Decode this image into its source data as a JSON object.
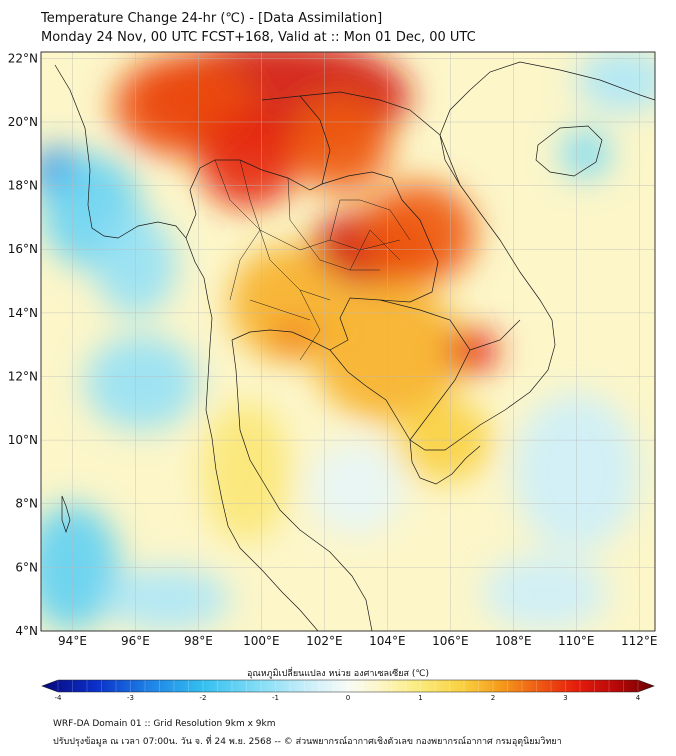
{
  "title": {
    "line1": "Temperature Change 24-hr (℃) - [Data Assimilation]",
    "line2": "Monday 24 Nov, 00 UTC FCST+168, Valid at :: Mon 01 Dec, 00 UTC"
  },
  "map": {
    "lon_range": [
      93,
      112.5
    ],
    "lat_range": [
      4,
      22.2
    ],
    "lon_ticks": [
      {
        "v": 94,
        "label": "94°E"
      },
      {
        "v": 96,
        "label": "96°E"
      },
      {
        "v": 98,
        "label": "98°E"
      },
      {
        "v": 100,
        "label": "100°E"
      },
      {
        "v": 102,
        "label": "102°E"
      },
      {
        "v": 104,
        "label": "104°E"
      },
      {
        "v": 106,
        "label": "106°E"
      },
      {
        "v": 108,
        "label": "108°E"
      },
      {
        "v": 110,
        "label": "110°E"
      },
      {
        "v": 112,
        "label": "112°E"
      }
    ],
    "lat_ticks": [
      {
        "v": 22,
        "label": "22°N"
      },
      {
        "v": 20,
        "label": "20°N"
      },
      {
        "v": 18,
        "label": "18°N"
      },
      {
        "v": 16,
        "label": "16°N"
      },
      {
        "v": 14,
        "label": "14°N"
      },
      {
        "v": 12,
        "label": "12°N"
      },
      {
        "v": 10,
        "label": "10°N"
      },
      {
        "v": 8,
        "label": "8°N"
      },
      {
        "v": 6,
        "label": "6°N"
      },
      {
        "v": 4,
        "label": "4°N"
      }
    ]
  },
  "field": {
    "background_value": 0.4,
    "anomalies": [
      {
        "name": "north-warm-core",
        "lon": 100.5,
        "lat": 20.8,
        "value": 3.2,
        "rx": 4.2,
        "ry": 1.8
      },
      {
        "name": "northwest-warm",
        "lon": 97.5,
        "lat": 20.5,
        "value": 2.6,
        "rx": 2.2,
        "ry": 1.6
      },
      {
        "name": "north-thailand-warm",
        "lon": 99.6,
        "lat": 18.8,
        "value": 2.9,
        "rx": 1.6,
        "ry": 1.5
      },
      {
        "name": "laos-warm",
        "lon": 102.5,
        "lat": 19.3,
        "value": 2.5,
        "rx": 1.6,
        "ry": 1.5
      },
      {
        "name": "isan-warm-core",
        "lon": 103.5,
        "lat": 16.0,
        "value": 3.2,
        "rx": 2.0,
        "ry": 1.2
      },
      {
        "name": "central-laos-warm",
        "lon": 105.0,
        "lat": 16.5,
        "value": 2.5,
        "rx": 1.8,
        "ry": 1.6
      },
      {
        "name": "central-thailand",
        "lon": 100.8,
        "lat": 14.3,
        "value": 1.8,
        "rx": 1.8,
        "ry": 1.8
      },
      {
        "name": "bangkok-warm",
        "lon": 101.0,
        "lat": 13.2,
        "value": 2.3,
        "rx": 0.7,
        "ry": 0.5
      },
      {
        "name": "cambodia-warm",
        "lon": 104.0,
        "lat": 12.8,
        "value": 1.8,
        "rx": 2.4,
        "ry": 2.2
      },
      {
        "name": "vietnam-warm-core",
        "lon": 106.7,
        "lat": 12.8,
        "value": 3.0,
        "rx": 0.8,
        "ry": 0.7
      },
      {
        "name": "mekong-warm",
        "lon": 105.8,
        "lat": 10.0,
        "value": 1.5,
        "rx": 1.5,
        "ry": 1.3
      },
      {
        "name": "peninsula-warm",
        "lon": 99.5,
        "lat": 9.0,
        "value": 1.0,
        "rx": 1.4,
        "ry": 2.2
      },
      {
        "name": "bay-of-bengal-cold",
        "lon": 93.6,
        "lat": 18.4,
        "value": -2.6,
        "rx": 0.9,
        "ry": 0.8
      },
      {
        "name": "andaman-cool",
        "lon": 94.6,
        "lat": 17.2,
        "value": -1.4,
        "rx": 1.6,
        "ry": 1.8
      },
      {
        "name": "myanmar-coast-cool",
        "lon": 96.0,
        "lat": 15.5,
        "value": -1.0,
        "rx": 1.3,
        "ry": 1.6
      },
      {
        "name": "andaman-sea-cool",
        "lon": 96.2,
        "lat": 11.8,
        "value": -1.0,
        "rx": 1.8,
        "ry": 1.5
      },
      {
        "name": "southwest-cool",
        "lon": 94.0,
        "lat": 6.0,
        "value": -1.5,
        "rx": 1.5,
        "ry": 2.0
      },
      {
        "name": "south-cool",
        "lon": 97.0,
        "lat": 5.0,
        "value": -0.8,
        "rx": 2.0,
        "ry": 1.0
      },
      {
        "name": "hainan-cool",
        "lon": 110.3,
        "lat": 19.0,
        "value": -1.2,
        "rx": 0.8,
        "ry": 0.8
      },
      {
        "name": "northeast-cool",
        "lon": 111.5,
        "lat": 21.3,
        "value": -0.8,
        "rx": 1.5,
        "ry": 1.0
      },
      {
        "name": "south-china-sea-cool",
        "lon": 110.0,
        "lat": 9.0,
        "value": -0.5,
        "rx": 2.0,
        "ry": 2.5
      },
      {
        "name": "south-east-cool",
        "lon": 109.0,
        "lat": 5.2,
        "value": -0.5,
        "rx": 2.0,
        "ry": 1.2
      },
      {
        "name": "gulf-of-thailand-cool",
        "lon": 103.0,
        "lat": 8.5,
        "value": -0.2,
        "rx": 1.5,
        "ry": 1.5
      }
    ]
  },
  "colorbar": {
    "label": "อุณหภูมิเปลี่ยนแปลง หน่วย องศาเซลเซียส (℃)",
    "min": -4,
    "max": 4,
    "stops": [
      {
        "v": -4.0,
        "color": "#08087a"
      },
      {
        "v": -3.3,
        "color": "#0a2fc8"
      },
      {
        "v": -2.6,
        "color": "#1e82e6"
      },
      {
        "v": -1.9,
        "color": "#34bff0"
      },
      {
        "v": -1.2,
        "color": "#7fdcf5"
      },
      {
        "v": -0.5,
        "color": "#cdeffa"
      },
      {
        "v": 0.0,
        "color": "#f8fbf6"
      },
      {
        "v": 0.4,
        "color": "#fcf6c9"
      },
      {
        "v": 0.9,
        "color": "#fbec80"
      },
      {
        "v": 1.5,
        "color": "#f9d040"
      },
      {
        "v": 2.0,
        "color": "#f59a1c"
      },
      {
        "v": 2.5,
        "color": "#ee5a12"
      },
      {
        "v": 3.0,
        "color": "#e41c0c"
      },
      {
        "v": 3.5,
        "color": "#b80808"
      },
      {
        "v": 4.0,
        "color": "#6a0000"
      }
    ],
    "ticks": [
      {
        "v": -4,
        "label": "-4"
      },
      {
        "v": -3,
        "label": "-3"
      },
      {
        "v": -2,
        "label": "-2"
      },
      {
        "v": -1,
        "label": "-1"
      },
      {
        "v": 0,
        "label": "0"
      },
      {
        "v": 1,
        "label": "1"
      },
      {
        "v": 2,
        "label": "2"
      },
      {
        "v": 3,
        "label": "3"
      },
      {
        "v": 4,
        "label": "4"
      }
    ]
  },
  "footer": {
    "line1": "WRF-DA Domain 01 :: Grid Resolution 9km x 9km",
    "line2": "ปรับปรุงข้อมูล ณ เวลา 07:00น. วัน จ. ที่ 24 พ.ย. 2568 -- © ส่วนพยากรณ์อากาศเชิงตัวเลข กองพยากรณ์อากาศ กรมอุตุนิยมวิทยา"
  }
}
